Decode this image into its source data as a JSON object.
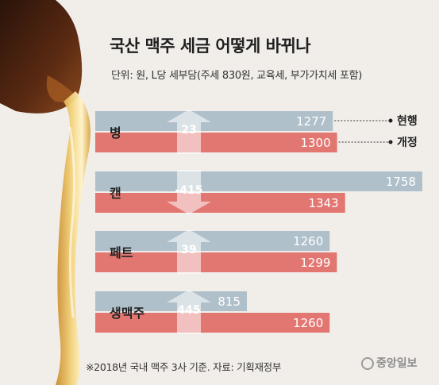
{
  "title": "국산 맥주 세금 어떻게 바뀌나",
  "subtitle": "단위: 원, L당 세부담(주세 830원, 교육세, 부가가치세 포함)",
  "footer": "※2018년 국내 맥주 3사 기준. 자료: 기획재정부",
  "brand": "중앙일보",
  "colors": {
    "current": "#a9bcc8",
    "revised": "#e0706c",
    "arrow": "#ffffff",
    "background": "#f1eeea"
  },
  "legend": {
    "current": "현행",
    "revised": "개정"
  },
  "chart_data": {
    "type": "bar",
    "orientation": "horizontal",
    "categories": [
      "병",
      "캔",
      "페트",
      "생맥주"
    ],
    "series": [
      {
        "name": "현행",
        "values": [
          1277,
          1758,
          1260,
          815
        ]
      },
      {
        "name": "개정",
        "values": [
          1300,
          1343,
          1299,
          1260
        ]
      }
    ],
    "differences": [
      "23",
      "-415",
      "39",
      "445"
    ],
    "value_labels": {
      "현행": [
        "1277",
        "1758",
        "1260",
        "815"
      ],
      "개정": [
        "1300",
        "1343",
        "1299",
        "1260"
      ]
    },
    "xlim": [
      0,
      1800
    ],
    "grid": false,
    "legend_position": "right"
  }
}
